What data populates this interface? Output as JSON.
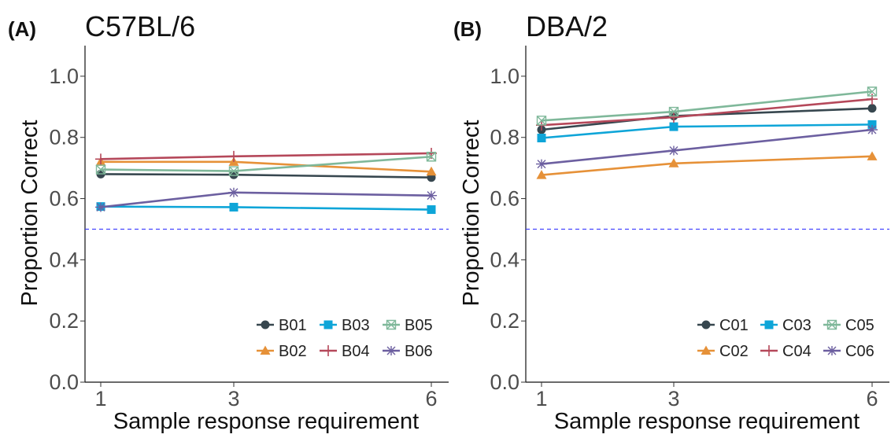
{
  "chart_data": [
    {
      "type": "line",
      "panel_label": "(A)",
      "title": "C57BL/6",
      "xlabel": "Sample response requirement",
      "ylabel": "Proportion Correct",
      "x": [
        1,
        3,
        6
      ],
      "x_tick_labels": [
        "1",
        "3",
        "6"
      ],
      "ylim": [
        0.0,
        1.1
      ],
      "y_ticks": [
        0.0,
        0.2,
        0.4,
        0.6,
        0.8,
        1.0
      ],
      "y_tick_labels": [
        "0.0",
        "0.2",
        "0.4",
        "0.6",
        "0.8",
        "1.0"
      ],
      "chance_line": 0.5,
      "grid": false,
      "legend_position": "bottom-right",
      "series": [
        {
          "name": "B01",
          "color": "#37474f",
          "marker": "circle",
          "values": [
            0.68,
            0.678,
            0.669
          ]
        },
        {
          "name": "B02",
          "color": "#e69138",
          "marker": "triangle",
          "values": [
            0.72,
            0.72,
            0.688
          ]
        },
        {
          "name": "B03",
          "color": "#0ea5d8",
          "marker": "square",
          "values": [
            0.574,
            0.572,
            0.564
          ]
        },
        {
          "name": "B04",
          "color": "#b5485a",
          "marker": "plus",
          "values": [
            0.729,
            0.738,
            0.748
          ]
        },
        {
          "name": "B05",
          "color": "#7fb89a",
          "marker": "boxx",
          "values": [
            0.695,
            0.69,
            0.737
          ]
        },
        {
          "name": "B06",
          "color": "#6c5fa0",
          "marker": "asterisk",
          "values": [
            0.572,
            0.62,
            0.61
          ]
        }
      ]
    },
    {
      "type": "line",
      "panel_label": "(B)",
      "title": "DBA/2",
      "xlabel": "Sample response requirement",
      "ylabel": "Proportion Correct",
      "x": [
        1,
        3,
        6
      ],
      "x_tick_labels": [
        "1",
        "3",
        "6"
      ],
      "ylim": [
        0.0,
        1.1
      ],
      "y_ticks": [
        0.0,
        0.2,
        0.4,
        0.6,
        0.8,
        1.0
      ],
      "y_tick_labels": [
        "0.0",
        "0.2",
        "0.4",
        "0.6",
        "0.8",
        "1.0"
      ],
      "chance_line": 0.5,
      "grid": false,
      "legend_position": "bottom-right",
      "series": [
        {
          "name": "C01",
          "color": "#37474f",
          "marker": "circle",
          "values": [
            0.825,
            0.87,
            0.895
          ]
        },
        {
          "name": "C02",
          "color": "#e69138",
          "marker": "triangle",
          "values": [
            0.677,
            0.715,
            0.738
          ]
        },
        {
          "name": "C03",
          "color": "#0ea5d8",
          "marker": "square",
          "values": [
            0.798,
            0.835,
            0.842
          ]
        },
        {
          "name": "C04",
          "color": "#b5485a",
          "marker": "plus",
          "values": [
            0.84,
            0.866,
            0.925
          ]
        },
        {
          "name": "C05",
          "color": "#7fb89a",
          "marker": "boxx",
          "values": [
            0.855,
            0.884,
            0.95
          ]
        },
        {
          "name": "C06",
          "color": "#6c5fa0",
          "marker": "asterisk",
          "values": [
            0.713,
            0.757,
            0.825
          ]
        }
      ]
    }
  ]
}
